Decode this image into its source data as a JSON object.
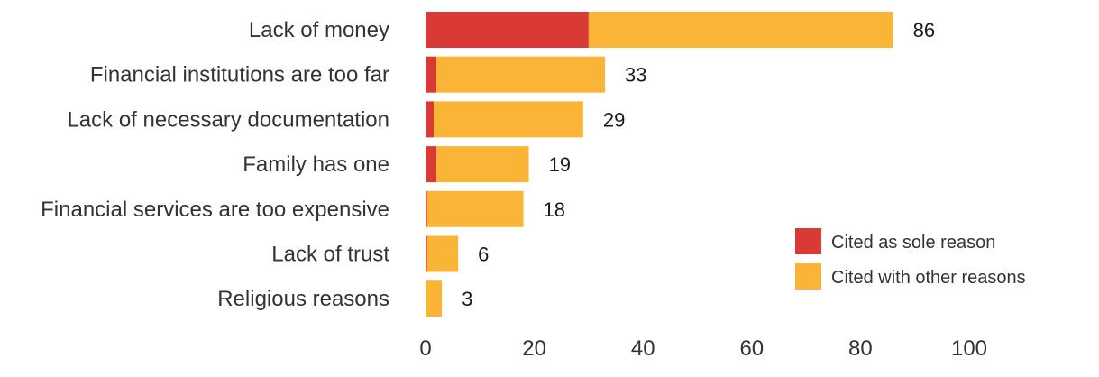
{
  "chart_data": {
    "type": "bar",
    "orientation": "horizontal",
    "stacked": true,
    "categories": [
      "Lack of money",
      "Financial institutions are too far",
      "Lack of necessary documentation",
      "Family has one",
      "Financial services are too expensive",
      "Lack of trust",
      "Religious reasons"
    ],
    "series": [
      {
        "name": "Cited as sole reason",
        "color": "#d93a35",
        "values": [
          30,
          2,
          1.5,
          2,
          0.3,
          0.3,
          0
        ]
      },
      {
        "name": "Cited with other reasons",
        "color": "#fbb536",
        "values": [
          56,
          31,
          27.5,
          17,
          17.7,
          5.7,
          3
        ]
      }
    ],
    "totals": [
      86,
      33,
      29,
      19,
      18,
      6,
      3
    ],
    "total_labels": [
      "86",
      "33",
      "29",
      "19",
      "18",
      "6",
      "3"
    ],
    "xlim": [
      0,
      100
    ],
    "xticks": [
      "0",
      "20",
      "40",
      "60",
      "80",
      "100"
    ],
    "grid": false,
    "legend_position": "bottom-right"
  }
}
